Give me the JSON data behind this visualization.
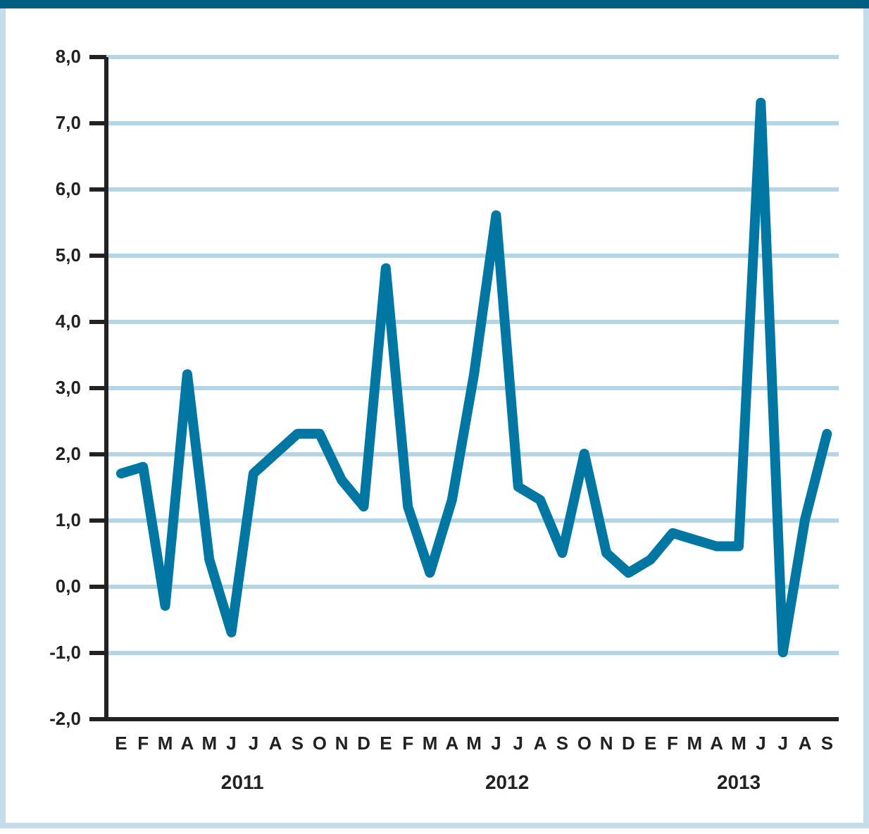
{
  "chart_data": {
    "type": "line",
    "categories": [
      "E",
      "F",
      "M",
      "A",
      "M",
      "J",
      "J",
      "A",
      "S",
      "O",
      "N",
      "D",
      "E",
      "F",
      "M",
      "A",
      "M",
      "J",
      "J",
      "A",
      "S",
      "O",
      "N",
      "D",
      "E",
      "F",
      "M",
      "A",
      "M",
      "J",
      "J",
      "A",
      "S"
    ],
    "series": [
      {
        "color": "#0077a3",
        "values": [
          1.7,
          1.8,
          -0.3,
          3.2,
          0.4,
          -0.7,
          1.7,
          2.0,
          2.3,
          2.3,
          1.6,
          1.2,
          4.8,
          1.2,
          0.2,
          1.3,
          3.2,
          5.6,
          1.5,
          1.3,
          0.5,
          2.0,
          0.5,
          0.2,
          0.4,
          0.8,
          0.7,
          0.6,
          0.6,
          7.3,
          -1.0,
          1.0,
          2.3
        ]
      }
    ],
    "ylim": [
      -2,
      8
    ],
    "yticks": [
      {
        "value": -2,
        "label": "-2,0"
      },
      {
        "value": -1,
        "label": "-1,0"
      },
      {
        "value": 0,
        "label": "0,0"
      },
      {
        "value": 1,
        "label": "1,0"
      },
      {
        "value": 2,
        "label": "2,0"
      },
      {
        "value": 3,
        "label": "3,0"
      },
      {
        "value": 4,
        "label": "4,0"
      },
      {
        "value": 5,
        "label": "5,0"
      },
      {
        "value": 6,
        "label": "6,0"
      },
      {
        "value": 7,
        "label": "7,0"
      },
      {
        "value": 8,
        "label": "8,0"
      }
    ],
    "annotations": [
      "2011",
      "2012",
      "2013"
    ],
    "grid": "y",
    "marker": "none",
    "line_style": "solid"
  }
}
